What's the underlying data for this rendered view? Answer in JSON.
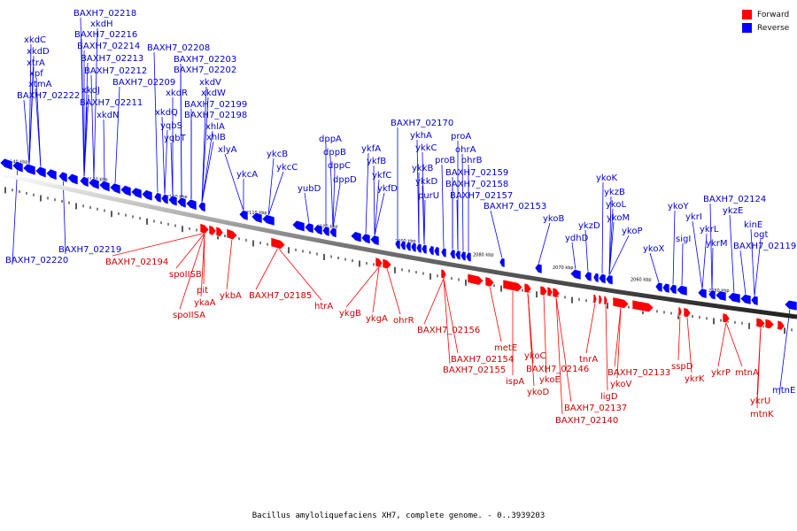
{
  "legend": {
    "forward_label": "Forward",
    "reverse_label": "Reverse",
    "forward_color": "#ff0000",
    "reverse_color": "#0000ff"
  },
  "caption": "Bacillus amyloliquefaciens XH7, complete genome. - 0..3939203",
  "scale_labels": [
    "2140 kbp",
    "2130 kbp",
    "2120 kbp",
    "2110 kbp",
    "2100 kbp",
    "2090 kbp",
    "2080 kbp",
    "2070 kbp",
    "2060 kbp",
    "2050 kbp"
  ],
  "reverse_genes": [
    "xkdC",
    "xkdD",
    "xtrA",
    "xpf",
    "xtmA",
    "BAXH7_02222",
    "BAXH7_02218",
    "xkdH",
    "BAXH7_02216",
    "BAXH7_02214",
    "BAXH7_02213",
    "BAXH7_02212",
    "xkdJ",
    "BAXH7_02211",
    "xkdN",
    "BAXH7_02209",
    "BAXH7_02208",
    "BAXH7_02203",
    "BAXH7_02202",
    "xkdR",
    "xkdQ",
    "yqbS",
    "yqbT",
    "xkdV",
    "xkdW",
    "BAXH7_02199",
    "BAXH7_02198",
    "xhlA",
    "xhlB",
    "xlyA",
    "ykcA",
    "ykcB",
    "ykcC",
    "yubD",
    "dppA",
    "dppB",
    "dppC",
    "dppD",
    "ykfA",
    "ykfB",
    "ykfC",
    "ykfD",
    "BAXH7_02170",
    "ykhA",
    "ykkC",
    "ykkB",
    "ykkD",
    "purU",
    "proA",
    "ohrA",
    "proB",
    "ohrB",
    "BAXH7_02159",
    "BAXH7_02158",
    "BAXH7_02157",
    "BAXH7_02153",
    "ykoB",
    "ydhD",
    "ykzD",
    "ykoK",
    "ykzB",
    "ykoL",
    "ykoM",
    "ykoP",
    "ykoX",
    "ykoY",
    "ykrI",
    "sigI",
    "ykrL",
    "ykrM",
    "BAXH7_02124",
    "ykzE",
    "kinE",
    "ogt",
    "BAXH7_02119",
    "BAXH7_02219",
    "BAXH7_02220",
    "mtnE"
  ],
  "forward_genes": [
    "BAXH7_02194",
    "spoIISB",
    "pit",
    "ykaA",
    "spoIISA",
    "ykbA",
    "BAXH7_02185",
    "htrA",
    "ykgB",
    "ykgA",
    "ohrR",
    "BAXH7_02156",
    "metE",
    "BAXH7_02154",
    "BAXH7_02155",
    "ispA",
    "ykoC",
    "BAXH7_02146",
    "ykoE",
    "ykoD",
    "tnrA",
    "ykoV",
    "BAXH7_02133",
    "ligD",
    "BAXH7_02137",
    "BAXH7_02140",
    "sspD",
    "ykrK",
    "ykrP",
    "mtnA",
    "ykrU",
    "mtnK"
  ]
}
